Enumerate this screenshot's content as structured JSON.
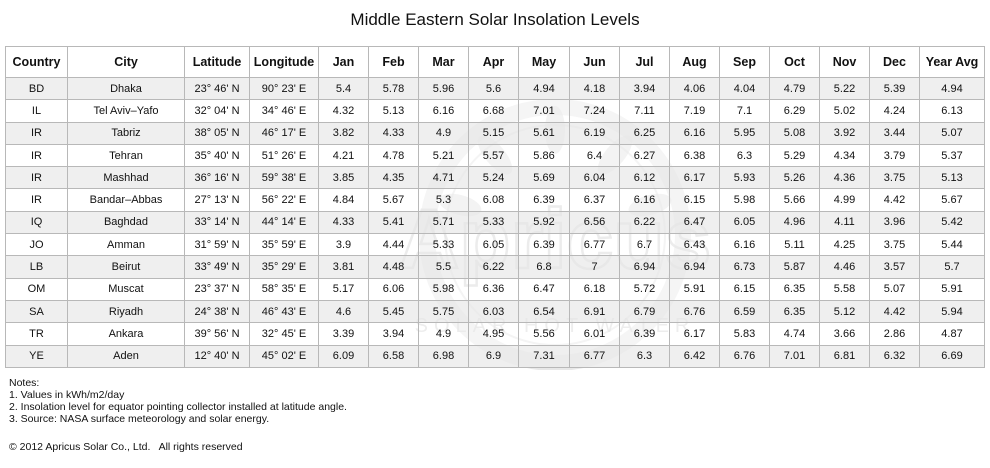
{
  "title": "Middle Eastern Solar Insolation Levels",
  "watermark": {
    "brand": "Apricus",
    "tagline": "SOLAR HOT WATER",
    "color": "#d6d6d6"
  },
  "table": {
    "headers": [
      "Country",
      "City",
      "Latitude",
      "Longitude",
      "Jan",
      "Feb",
      "Mar",
      "Apr",
      "May",
      "Jun",
      "Jul",
      "Aug",
      "Sep",
      "Oct",
      "Nov",
      "Dec",
      "Year Avg"
    ],
    "rows": [
      [
        "BD",
        "Dhaka",
        "23° 46' N",
        "90° 23' E",
        "5.4",
        "5.78",
        "5.96",
        "5.6",
        "4.94",
        "4.18",
        "3.94",
        "4.06",
        "4.04",
        "4.79",
        "5.22",
        "5.39",
        "4.94"
      ],
      [
        "IL",
        "Tel Aviv–Yafo",
        "32° 04' N",
        "34° 46' E",
        "4.32",
        "5.13",
        "6.16",
        "6.68",
        "7.01",
        "7.24",
        "7.11",
        "7.19",
        "7.1",
        "6.29",
        "5.02",
        "4.24",
        "6.13"
      ],
      [
        "IR",
        "Tabriz",
        "38° 05' N",
        "46° 17' E",
        "3.82",
        "4.33",
        "4.9",
        "5.15",
        "5.61",
        "6.19",
        "6.25",
        "6.16",
        "5.95",
        "5.08",
        "3.92",
        "3.44",
        "5.07"
      ],
      [
        "IR",
        "Tehran",
        "35° 40' N",
        "51° 26' E",
        "4.21",
        "4.78",
        "5.21",
        "5.57",
        "5.86",
        "6.4",
        "6.27",
        "6.38",
        "6.3",
        "5.29",
        "4.34",
        "3.79",
        "5.37"
      ],
      [
        "IR",
        "Mashhad",
        "36° 16' N",
        "59° 38' E",
        "3.85",
        "4.35",
        "4.71",
        "5.24",
        "5.69",
        "6.04",
        "6.12",
        "6.17",
        "5.93",
        "5.26",
        "4.36",
        "3.75",
        "5.13"
      ],
      [
        "IR",
        "Bandar–Abbas",
        "27° 13' N",
        "56° 22' E",
        "4.84",
        "5.67",
        "5.3",
        "6.08",
        "6.39",
        "6.37",
        "6.16",
        "6.15",
        "5.98",
        "5.66",
        "4.99",
        "4.42",
        "5.67"
      ],
      [
        "IQ",
        "Baghdad",
        "33° 14' N",
        "44° 14' E",
        "4.33",
        "5.41",
        "5.71",
        "5.33",
        "5.92",
        "6.56",
        "6.22",
        "6.47",
        "6.05",
        "4.96",
        "4.11",
        "3.96",
        "5.42"
      ],
      [
        "JO",
        "Amman",
        "31° 59' N",
        "35° 59' E",
        "3.9",
        "4.44",
        "5.33",
        "6.05",
        "6.39",
        "6.77",
        "6.7",
        "6.43",
        "6.16",
        "5.11",
        "4.25",
        "3.75",
        "5.44"
      ],
      [
        "LB",
        "Beirut",
        "33° 49' N",
        "35° 29' E",
        "3.81",
        "4.48",
        "5.5",
        "6.22",
        "6.8",
        "7",
        "6.94",
        "6.94",
        "6.73",
        "5.87",
        "4.46",
        "3.57",
        "5.7"
      ],
      [
        "OM",
        "Muscat",
        "23° 37' N",
        "58° 35' E",
        "5.17",
        "6.06",
        "5.98",
        "6.36",
        "6.47",
        "6.18",
        "5.72",
        "5.91",
        "6.15",
        "6.35",
        "5.58",
        "5.07",
        "5.91"
      ],
      [
        "SA",
        "Riyadh",
        "24° 38' N",
        "46° 43' E",
        "4.6",
        "5.45",
        "5.75",
        "6.03",
        "6.54",
        "6.91",
        "6.79",
        "6.76",
        "6.59",
        "6.35",
        "5.12",
        "4.42",
        "5.94"
      ],
      [
        "TR",
        "Ankara",
        "39° 56' N",
        "32° 45' E",
        "3.39",
        "3.94",
        "4.9",
        "4.95",
        "5.56",
        "6.01",
        "6.39",
        "6.17",
        "5.83",
        "4.74",
        "3.66",
        "2.86",
        "4.87"
      ],
      [
        "YE",
        "Aden",
        "12° 40' N",
        "45° 02' E",
        "6.09",
        "6.58",
        "6.98",
        "6.9",
        "7.31",
        "6.77",
        "6.3",
        "6.42",
        "6.76",
        "7.01",
        "6.81",
        "6.32",
        "6.69"
      ]
    ]
  },
  "notes": {
    "heading": "Notes:",
    "items": [
      "1. Values in kWh/m2/day",
      "2. Insolation level for equator pointing collector installed at latitude angle.",
      "3. Source: NASA surface meteorology and solar energy."
    ]
  },
  "copyright": "© 2012 Apricus Solar Co., Ltd.   All rights reserved"
}
